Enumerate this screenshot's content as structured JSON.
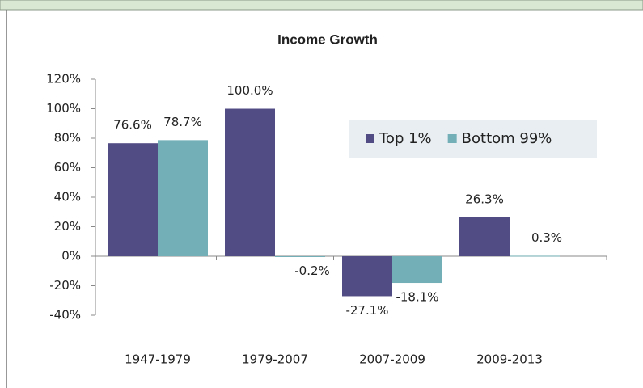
{
  "chart_data": {
    "type": "bar",
    "title": "Income Growth",
    "categories": [
      "1947-1979",
      "1979-2007",
      "2007-2009",
      "2009-2013"
    ],
    "series": [
      {
        "name": "Top 1%",
        "color": "#524c84",
        "values": [
          76.6,
          100.0,
          -27.1,
          26.3
        ],
        "value_labels": [
          "76.6%",
          "100.0%",
          "-27.1%",
          "26.3%"
        ]
      },
      {
        "name": "Bottom 99%",
        "color": "#72afb6",
        "values": [
          78.7,
          -0.2,
          -18.1,
          0.3
        ],
        "value_labels": [
          "78.7%",
          "-0.2%",
          "-18.1%",
          "0.3%"
        ]
      }
    ],
    "ylim": [
      -40,
      120
    ],
    "yticks": [
      {
        "value": -40,
        "label": "-40%"
      },
      {
        "value": -20,
        "label": "-20%"
      },
      {
        "value": 0,
        "label": "0%"
      },
      {
        "value": 20,
        "label": "20%"
      },
      {
        "value": 40,
        "label": "40%"
      },
      {
        "value": 60,
        "label": "60%"
      },
      {
        "value": 80,
        "label": "80%"
      },
      {
        "value": 100,
        "label": "100%"
      },
      {
        "value": 120,
        "label": "120%"
      }
    ],
    "legend": "upper right"
  }
}
